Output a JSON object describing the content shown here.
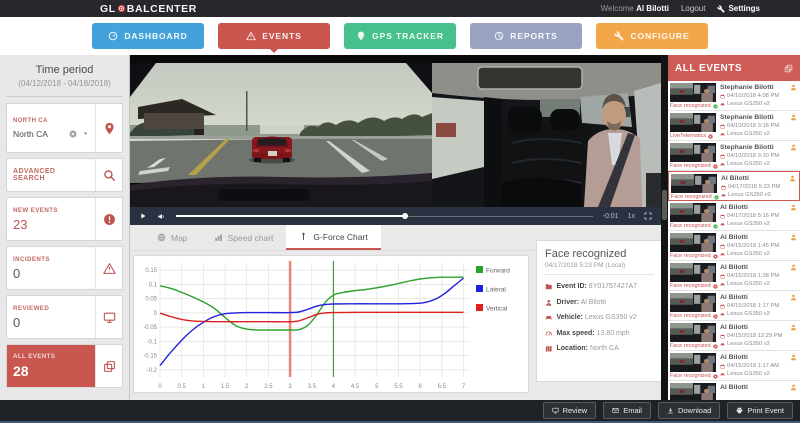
{
  "header": {
    "logo_prefix": "GL",
    "logo_mid": "BAL",
    "logo_suffix": "CENTER",
    "welcome_prefix": "Welcome",
    "user_name": "Al Bilotti",
    "logout_label": "Logout",
    "settings_label": "Settings"
  },
  "nav": {
    "items": [
      {
        "label": "DASHBOARD",
        "color": "#44a2da",
        "icon": "gauge",
        "active": false
      },
      {
        "label": "EVENTS",
        "color": "#ca544e",
        "icon": "warning",
        "active": true
      },
      {
        "label": "GPS TRACKER",
        "color": "#46c08c",
        "icon": "pin",
        "active": false
      },
      {
        "label": "REPORTS",
        "color": "#98a3c2",
        "icon": "pie",
        "active": false
      },
      {
        "label": "CONFIGURE",
        "color": "#f3a648",
        "icon": "wrench",
        "active": false
      }
    ]
  },
  "sidebar": {
    "time_period_label": "Time period",
    "time_period_value": "(04/12/2018 - 04/18/2018)",
    "location_label": "NORTH CA",
    "location_value": "North CA",
    "advanced_search_label": "ADVANCED SEARCH",
    "counters": [
      {
        "label": "NEW EVENTS",
        "value": "23",
        "icon": "badge"
      },
      {
        "label": "INCIDENTS",
        "value": "0",
        "icon": "warning"
      },
      {
        "label": "REVIEWED",
        "value": "0",
        "icon": "monitor"
      },
      {
        "label": "ALL EVENTS",
        "value": "28",
        "icon": "copy"
      }
    ]
  },
  "video": {
    "time_display": "-0:01",
    "speed_display": "1x"
  },
  "tabs": [
    {
      "label": "Map",
      "icon": "globe",
      "active": false
    },
    {
      "label": "Speed chart",
      "icon": "bars",
      "active": false
    },
    {
      "label": "G-Force Chart",
      "icon": "gpole",
      "active": true
    }
  ],
  "chart_data": {
    "type": "line",
    "title": "",
    "xlabel": "",
    "ylabel": "",
    "xlim": [
      0,
      7.15
    ],
    "ylim": [
      -0.225,
      0.175
    ],
    "x_ticks": [
      0,
      0.5,
      1,
      1.5,
      2,
      2.5,
      3,
      3.5,
      4,
      4.5,
      5,
      5.5,
      6,
      6.5,
      7
    ],
    "y_ticks": [
      0.15,
      0.1,
      0.05,
      0,
      -0.05,
      -0.1,
      -0.15,
      -0.2
    ],
    "grid": true,
    "legend_position": "right",
    "markers": [
      {
        "x": 3,
        "color": "#e8837c",
        "width": 2.5
      },
      {
        "x": 4,
        "color": "#3f9d42",
        "width": 1.2
      }
    ],
    "series": [
      {
        "name": "Forward",
        "color": "#2ba02b",
        "points": [
          [
            0,
            0.095
          ],
          [
            0.25,
            0.086
          ],
          [
            0.5,
            0.072
          ],
          [
            0.75,
            0.056
          ],
          [
            1,
            0.038
          ],
          [
            1.25,
            0.016
          ],
          [
            1.5,
            -0.016
          ],
          [
            1.75,
            -0.045
          ],
          [
            2,
            -0.057
          ],
          [
            2.25,
            -0.06
          ],
          [
            2.5,
            -0.06
          ],
          [
            2.75,
            -0.06
          ],
          [
            3,
            -0.06
          ],
          [
            3.2,
            -0.059
          ],
          [
            3.4,
            -0.045
          ],
          [
            3.6,
            -0.01
          ],
          [
            3.8,
            0.035
          ],
          [
            4,
            0.062
          ],
          [
            4.2,
            0.071
          ],
          [
            4.5,
            0.078
          ],
          [
            4.75,
            0.082
          ],
          [
            5,
            0.088
          ],
          [
            5.25,
            0.095
          ],
          [
            5.5,
            0.103
          ],
          [
            5.75,
            0.112
          ],
          [
            6,
            0.119
          ],
          [
            6.25,
            0.123
          ],
          [
            6.5,
            0.125
          ],
          [
            6.75,
            0.125
          ],
          [
            7,
            0.125
          ]
        ]
      },
      {
        "name": "Lateral",
        "color": "#2020dd",
        "points": [
          [
            0,
            -0.185
          ],
          [
            0.25,
            -0.138
          ],
          [
            0.5,
            -0.096
          ],
          [
            0.75,
            -0.06
          ],
          [
            1,
            -0.033
          ],
          [
            1.25,
            -0.013
          ],
          [
            1.5,
            -0.003
          ],
          [
            1.75,
            0
          ],
          [
            2,
            0.001
          ],
          [
            2.5,
            0.001
          ],
          [
            3,
            0.001
          ],
          [
            3.2,
            0.003
          ],
          [
            3.4,
            0.012
          ],
          [
            3.6,
            0.023
          ],
          [
            3.8,
            0.029
          ],
          [
            4,
            0.031
          ],
          [
            4.5,
            0.032
          ],
          [
            5,
            0.032
          ],
          [
            5.5,
            0.032
          ],
          [
            6,
            0.034
          ],
          [
            6.2,
            0.04
          ],
          [
            6.4,
            0.052
          ],
          [
            6.6,
            0.072
          ],
          [
            6.8,
            0.097
          ],
          [
            7,
            0.122
          ]
        ]
      },
      {
        "name": "Vertical",
        "color": "#dd2020",
        "points": [
          [
            0,
            -0.001
          ],
          [
            0.25,
            -0.013
          ],
          [
            0.5,
            -0.023
          ],
          [
            0.75,
            -0.028
          ],
          [
            1,
            -0.03
          ],
          [
            1.5,
            -0.031
          ],
          [
            2,
            -0.031
          ],
          [
            2.5,
            -0.031
          ],
          [
            3,
            -0.031
          ],
          [
            3.2,
            -0.028
          ],
          [
            3.4,
            -0.018
          ],
          [
            3.6,
            -0.006
          ],
          [
            3.8,
            0
          ],
          [
            4,
            0.001
          ],
          [
            4.5,
            0.002
          ],
          [
            5,
            0.002
          ],
          [
            5.5,
            0.002
          ],
          [
            6,
            0.002
          ],
          [
            6.5,
            0.002
          ],
          [
            7,
            0.002
          ]
        ]
      }
    ]
  },
  "event_details": {
    "title": "Face recognized",
    "timestamp": "04/17/2018 5:23 PM (Local)",
    "fields": [
      {
        "label": "Event ID",
        "value": "8Y01757427A7",
        "icon": "folder"
      },
      {
        "label": "Driver",
        "value": "Al Bilotti",
        "icon": "person"
      },
      {
        "label": "Vehicle",
        "value": "Lexus GS350 v2",
        "icon": "car"
      },
      {
        "label": "Max speed",
        "value": "13.80 mph",
        "icon": "speedo"
      },
      {
        "label": "Location",
        "value": "North CA",
        "icon": "mapfold"
      }
    ]
  },
  "events_panel": {
    "title": "ALL EVENTS",
    "items": [
      {
        "name": "Stephanie Bilotti",
        "date": "04/10/2018 4:08 PM",
        "vehicle": "Lexus GS350 v2",
        "tag": "Face recognized",
        "tag_status": "green",
        "selected": false
      },
      {
        "name": "Stephanie Bilotti",
        "date": "04/10/2018 3:16 PM",
        "vehicle": "Lexus GS350 v2",
        "tag": "LiveTelematics",
        "tag_status": "red",
        "selected": false
      },
      {
        "name": "Stephanie Bilotti",
        "date": "04/10/2018 3:10 PM",
        "vehicle": "Lexus GS350 v2",
        "tag": "Face recognized",
        "tag_status": "red",
        "selected": false
      },
      {
        "name": "Al Bilotti",
        "date": "04/17/2018 5:23 PM",
        "vehicle": "Lexus GS350 v2",
        "tag": "Face recognized",
        "tag_status": "green",
        "selected": true
      },
      {
        "name": "Al Bilotti",
        "date": "04/17/2018 5:16 PM",
        "vehicle": "Lexus GS350 v2",
        "tag": "Face recognized",
        "tag_status": "green",
        "selected": false
      },
      {
        "name": "Al Bilotti",
        "date": "04/15/2018 1:45 PM",
        "vehicle": "Lexus GS350 v2",
        "tag": "Face recognized",
        "tag_status": "red",
        "selected": false
      },
      {
        "name": "Al Bilotti",
        "date": "04/15/2018 1:38 PM",
        "vehicle": "Lexus GS350 v2",
        "tag": "Face recognized",
        "tag_status": "red",
        "selected": false
      },
      {
        "name": "Al Bilotti",
        "date": "04/15/2018 1:17 PM",
        "vehicle": "Lexus GS350 v2",
        "tag": "Face recognized",
        "tag_status": "red",
        "selected": false
      },
      {
        "name": "Al Bilotti",
        "date": "04/15/2018 12:29 PM",
        "vehicle": "Lexus GS350 v2",
        "tag": "Face recognized",
        "tag_status": "red",
        "selected": false
      },
      {
        "name": "Al Bilotti",
        "date": "04/15/2018 1:17 AM",
        "vehicle": "Lexus GS350 v2",
        "tag": "Face recognized",
        "tag_status": "red",
        "selected": false
      },
      {
        "name": "Al Bilotti",
        "date": "",
        "vehicle": "",
        "tag": "",
        "tag_status": "",
        "selected": false
      }
    ]
  },
  "footer": {
    "buttons": [
      {
        "label": "Review",
        "icon": "monitor"
      },
      {
        "label": "Email",
        "icon": "envelope"
      },
      {
        "label": "Download",
        "icon": "download"
      },
      {
        "label": "Print Event",
        "icon": "printer"
      }
    ]
  },
  "colors": {
    "header_bg": "#26282c",
    "accent_red": "#ca544e",
    "panel_header": "#ce5b55",
    "selected_border": "#cf5a54",
    "footer_bg": "#1e2226",
    "status_green": "#3cb54a",
    "status_red": "#d9534f",
    "person_icon": "#eca33d"
  }
}
